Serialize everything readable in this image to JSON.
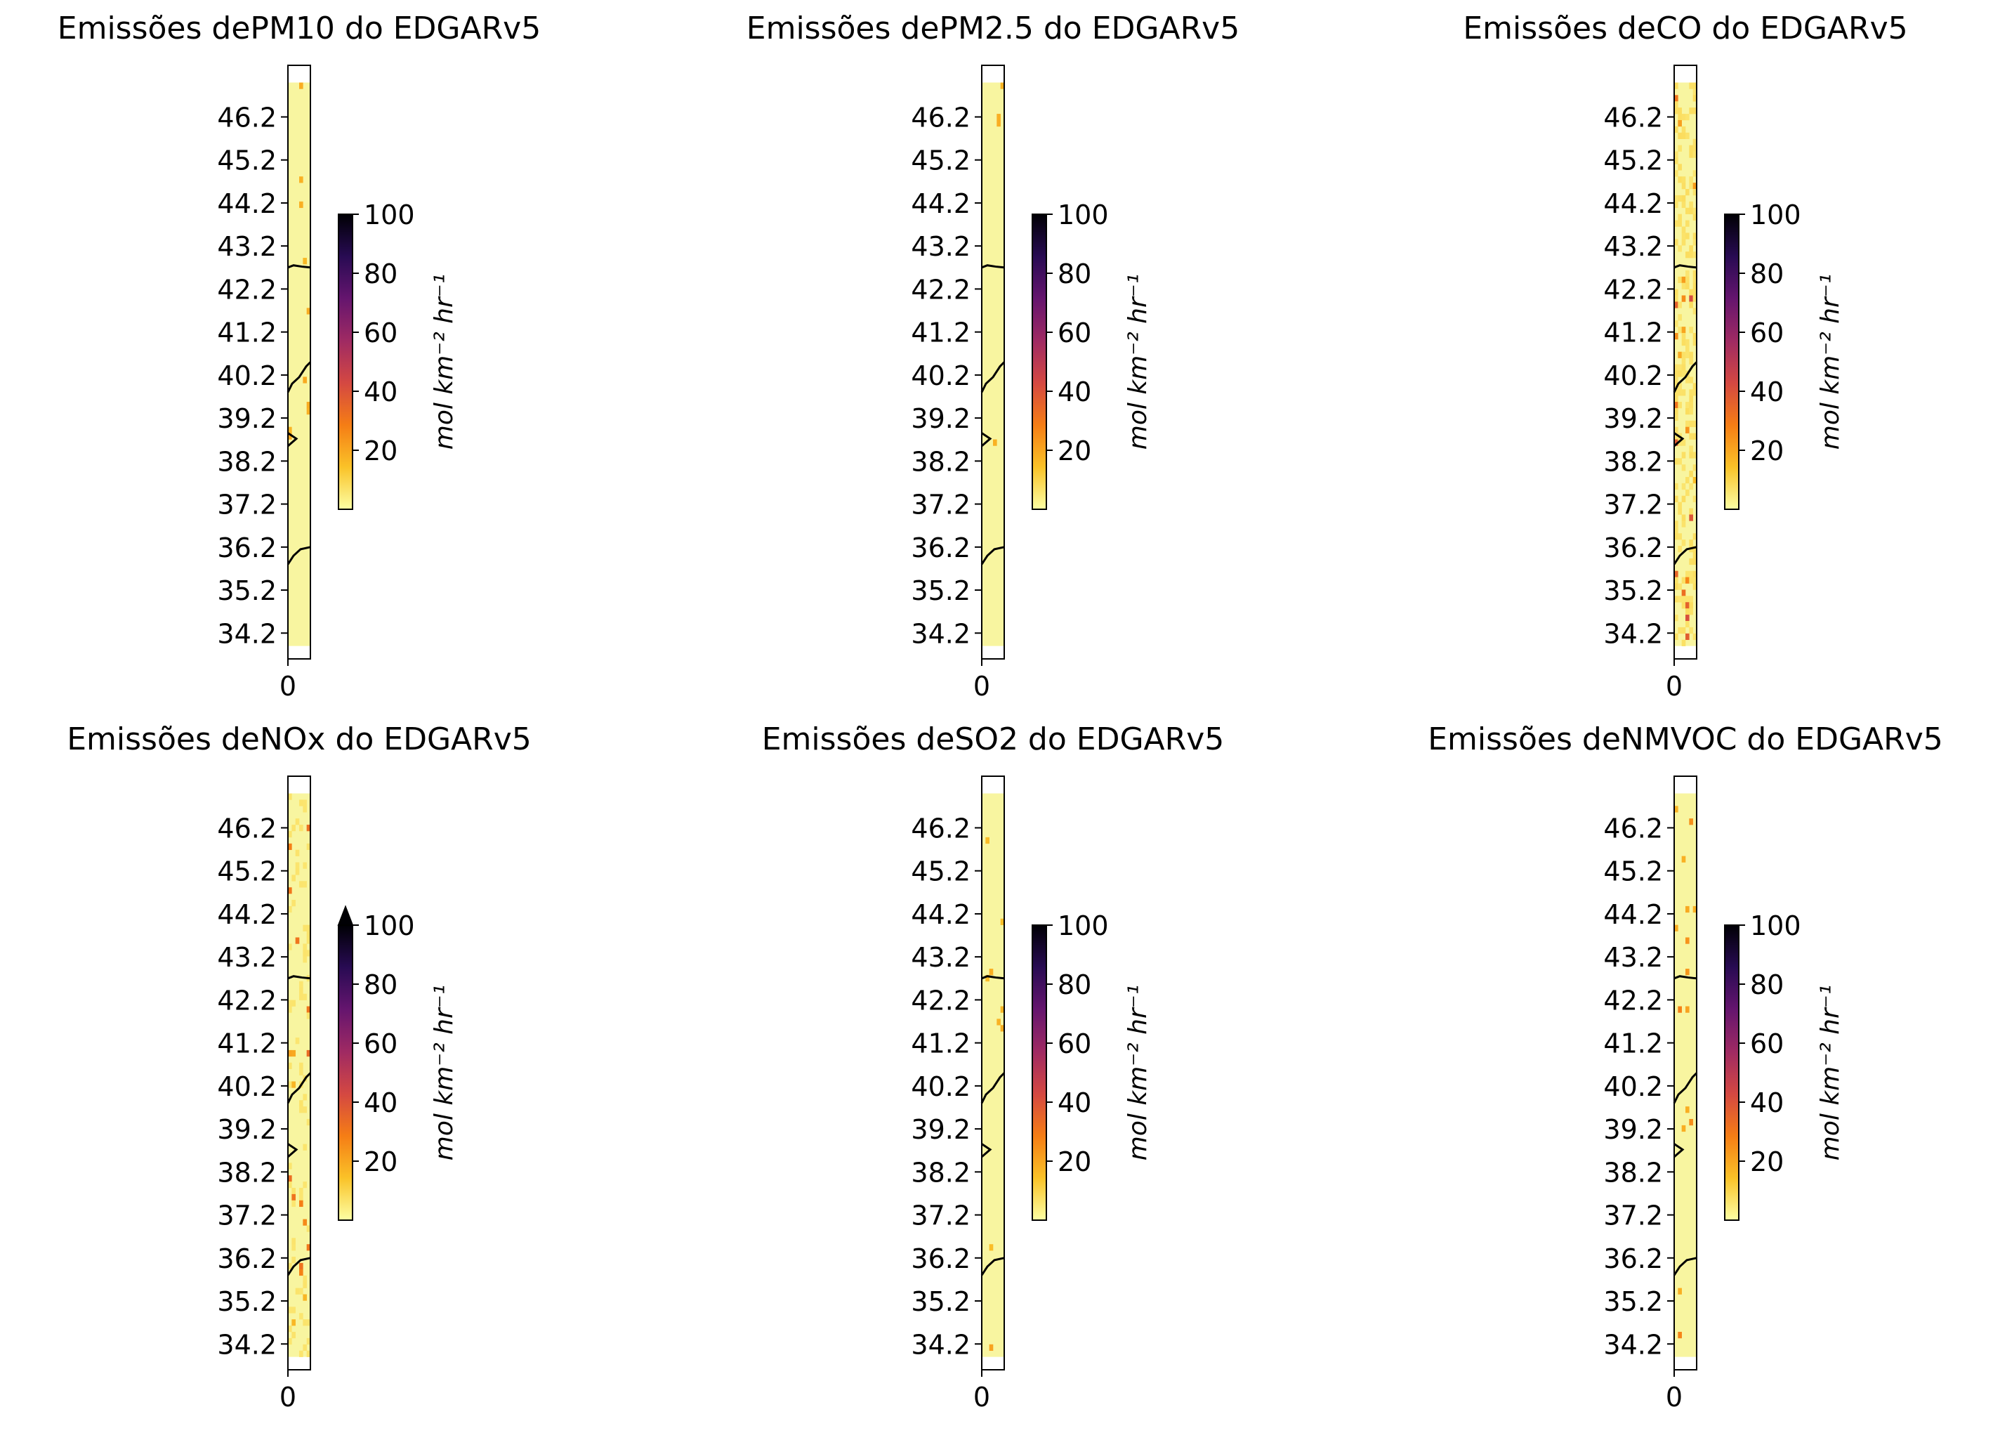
{
  "figure": {
    "background": "#ffffff",
    "colormap": "inferno_r",
    "colormap_stops": [
      "#fcffa4",
      "#fac228",
      "#f57d15",
      "#d44842",
      "#9f2a63",
      "#65156e",
      "#280b53",
      "#000004"
    ],
    "coastline_color": "#000000",
    "pixel_cmap_sample_colors": {
      "low": "#f8f5a0",
      "mid": "#f3de7c",
      "hot": "#e45a31"
    }
  },
  "chart_data": [
    {
      "type": "heatmap",
      "title": "Emissões dePM10 do EDGARv5",
      "pollutant": "PM10",
      "xlabel": "",
      "ylabel": "",
      "x_ticks": [
        "0"
      ],
      "y_ticks": [
        "34.2",
        "35.2",
        "36.2",
        "37.2",
        "38.2",
        "39.2",
        "40.2",
        "41.2",
        "42.2",
        "43.2",
        "44.2",
        "45.2",
        "46.2"
      ],
      "ylim": [
        33.6,
        47.4
      ],
      "colorbar": {
        "label": "mol km⁻² hr⁻¹",
        "ticks": [
          "20",
          "40",
          "60",
          "80",
          "100"
        ],
        "range": [
          0,
          100
        ],
        "extend": "neither"
      },
      "hotspot_intensity": 0.15,
      "grid": false
    },
    {
      "type": "heatmap",
      "title": "Emissões dePM2.5 do EDGARv5",
      "pollutant": "PM2.5",
      "xlabel": "",
      "ylabel": "",
      "x_ticks": [
        "0"
      ],
      "y_ticks": [
        "34.2",
        "35.2",
        "36.2",
        "37.2",
        "38.2",
        "39.2",
        "40.2",
        "41.2",
        "42.2",
        "43.2",
        "44.2",
        "45.2",
        "46.2"
      ],
      "ylim": [
        33.6,
        47.4
      ],
      "colorbar": {
        "label": "mol km⁻² hr⁻¹",
        "ticks": [
          "20",
          "40",
          "60",
          "80",
          "100"
        ],
        "range": [
          0,
          100
        ],
        "extend": "neither"
      },
      "hotspot_intensity": 0.1,
      "grid": false
    },
    {
      "type": "heatmap",
      "title": "Emissões deCO do EDGARv5",
      "pollutant": "CO",
      "xlabel": "",
      "ylabel": "",
      "x_ticks": [
        "0"
      ],
      "y_ticks": [
        "34.2",
        "35.2",
        "36.2",
        "37.2",
        "38.2",
        "39.2",
        "40.2",
        "41.2",
        "42.2",
        "43.2",
        "44.2",
        "45.2",
        "46.2"
      ],
      "ylim": [
        33.6,
        47.4
      ],
      "colorbar": {
        "label": "mol km⁻² hr⁻¹",
        "ticks": [
          "20",
          "40",
          "60",
          "80",
          "100"
        ],
        "range": [
          0,
          100
        ],
        "extend": "neither"
      },
      "hotspot_intensity": 0.8,
      "grid": false
    },
    {
      "type": "heatmap",
      "title": "Emissões deNOx do EDGARv5",
      "pollutant": "NOx",
      "xlabel": "",
      "ylabel": "",
      "x_ticks": [
        "0"
      ],
      "y_ticks": [
        "34.2",
        "35.2",
        "36.2",
        "37.2",
        "38.2",
        "39.2",
        "40.2",
        "41.2",
        "42.2",
        "43.2",
        "44.2",
        "45.2",
        "46.2"
      ],
      "ylim": [
        33.6,
        47.4
      ],
      "colorbar": {
        "label": "mol km⁻² hr⁻¹",
        "ticks": [
          "20",
          "40",
          "60",
          "80",
          "100"
        ],
        "range": [
          0,
          100
        ],
        "extend": "max"
      },
      "hotspot_intensity": 0.6,
      "grid": false
    },
    {
      "type": "heatmap",
      "title": "Emissões deSO2 do EDGARv5",
      "pollutant": "SO2",
      "xlabel": "",
      "ylabel": "",
      "x_ticks": [
        "0"
      ],
      "y_ticks": [
        "34.2",
        "35.2",
        "36.2",
        "37.2",
        "38.2",
        "39.2",
        "40.2",
        "41.2",
        "42.2",
        "43.2",
        "44.2",
        "45.2",
        "46.2"
      ],
      "ylim": [
        33.6,
        47.4
      ],
      "colorbar": {
        "label": "mol km⁻² hr⁻¹",
        "ticks": [
          "20",
          "40",
          "60",
          "80",
          "100"
        ],
        "range": [
          0,
          100
        ],
        "extend": "neither"
      },
      "hotspot_intensity": 0.2,
      "grid": false
    },
    {
      "type": "heatmap",
      "title": "Emissões deNMVOC do EDGARv5",
      "pollutant": "NMVOC",
      "xlabel": "",
      "ylabel": "",
      "x_ticks": [
        "0"
      ],
      "y_ticks": [
        "34.2",
        "35.2",
        "36.2",
        "37.2",
        "38.2",
        "39.2",
        "40.2",
        "41.2",
        "42.2",
        "43.2",
        "44.2",
        "45.2",
        "46.2"
      ],
      "ylim": [
        33.6,
        47.4
      ],
      "colorbar": {
        "label": "mol km⁻² hr⁻¹",
        "ticks": [
          "20",
          "40",
          "60",
          "80",
          "100"
        ],
        "range": [
          0,
          100
        ],
        "extend": "neither"
      },
      "hotspot_intensity": 0.5,
      "grid": false
    }
  ]
}
